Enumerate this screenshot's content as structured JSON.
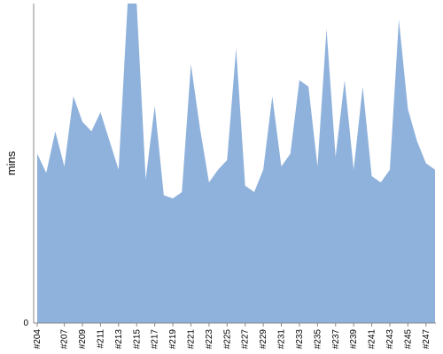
{
  "colors": {
    "area_fill": "#8fb2dc",
    "axis": "#888888",
    "text": "#000000",
    "background": "#ffffff"
  },
  "chart_data": {
    "type": "area",
    "title": "",
    "xlabel": "",
    "ylabel": "mins",
    "y_tick_labels": [
      "0"
    ],
    "ylim": [
      0,
      100
    ],
    "grid": false,
    "legend": "none",
    "x_tick_labels": [
      "#204",
      "#207",
      "#209",
      "#211",
      "#213",
      "#215",
      "#217",
      "#219",
      "#221",
      "#223",
      "#225",
      "#227",
      "#229",
      "#231",
      "#233",
      "#235",
      "#237",
      "#239",
      "#241",
      "#243",
      "#245",
      "#247"
    ],
    "categories": [
      "#204",
      "#205",
      "#206",
      "#207",
      "#208",
      "#209",
      "#210",
      "#211",
      "#212",
      "#213",
      "#214",
      "#215",
      "#216",
      "#217",
      "#218",
      "#219",
      "#220",
      "#221",
      "#222",
      "#223",
      "#224",
      "#225",
      "#226",
      "#227",
      "#228",
      "#229",
      "#230",
      "#231",
      "#232",
      "#233",
      "#234",
      "#235",
      "#236",
      "#237",
      "#238",
      "#239",
      "#240",
      "#241",
      "#242",
      "#243",
      "#244",
      "#245",
      "#246",
      "#247",
      "#248"
    ],
    "series": [
      {
        "values": [
          53,
          47,
          60,
          49,
          71,
          63,
          60,
          66,
          57,
          48,
          100,
          100,
          45,
          68,
          40,
          39,
          41,
          81,
          61,
          44,
          48,
          51,
          86,
          43,
          41,
          48,
          71,
          49,
          53,
          76,
          74,
          49,
          92,
          52,
          76,
          48,
          74,
          46,
          44,
          48,
          95,
          67,
          57,
          50,
          48
        ]
      }
    ]
  }
}
